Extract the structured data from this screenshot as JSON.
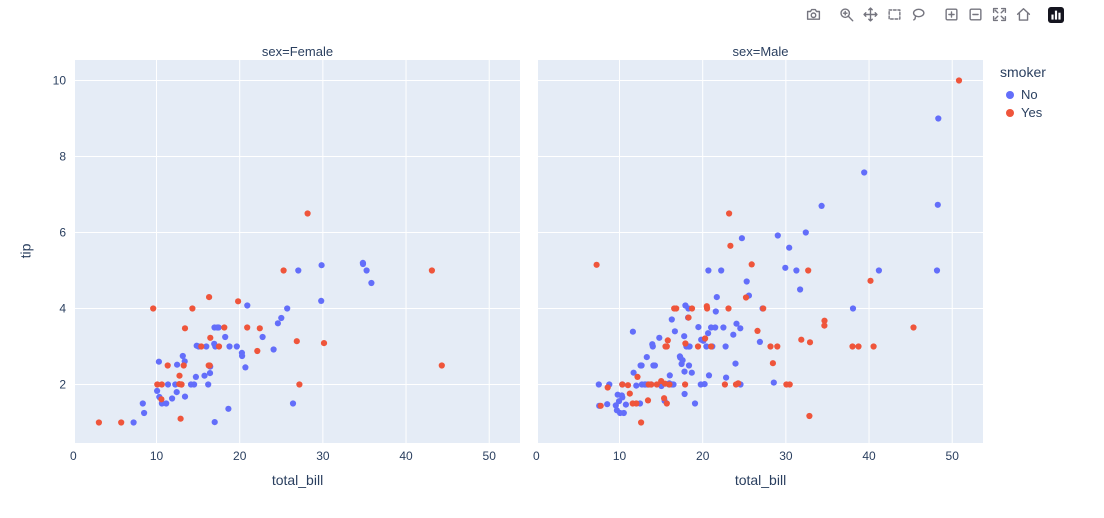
{
  "modebar": {
    "icons": [
      "camera",
      "zoom",
      "pan",
      "box-select",
      "lasso-select",
      "zoom-in",
      "zoom-out",
      "autoscale",
      "reset-axes",
      "plotly-logo"
    ]
  },
  "chart_data": {
    "type": "scatter",
    "facet_by": "sex",
    "color_by": "smoker",
    "xlabel": "total_bill",
    "ylabel": "tip",
    "x_range": [
      0.2,
      53.7
    ],
    "y_range": [
      0.46,
      10.54
    ],
    "x_ticks": [
      0,
      10,
      20,
      30,
      40,
      50
    ],
    "y_ticks": [
      2,
      4,
      6,
      8,
      10
    ],
    "plot_bgcolor": "#e5ecf6",
    "grid_color": "#ffffff",
    "colors": {
      "No": "#636efa",
      "Yes": "#ef553b"
    },
    "legend": {
      "title": "smoker",
      "entries": [
        "No",
        "Yes"
      ]
    },
    "facets": [
      {
        "title": "sex=Female",
        "series": [
          {
            "name": "No",
            "points": [
              [
                16.99,
                1.01
              ],
              [
                24.59,
                3.61
              ],
              [
                35.26,
                5
              ],
              [
                14.83,
                3.02
              ],
              [
                10.33,
                1.67
              ],
              [
                16.97,
                3.5
              ],
              [
                20.29,
                2.75
              ],
              [
                15.77,
                2.23
              ],
              [
                19.65,
                3
              ],
              [
                15.06,
                3
              ],
              [
                20.69,
                2.45
              ],
              [
                16.93,
                3.07
              ],
              [
                10.29,
                2.6
              ],
              [
                34.81,
                5.2
              ],
              [
                26.41,
                1.5
              ],
              [
                16.45,
                2.47
              ],
              [
                17.07,
                3
              ],
              [
                14.73,
                2.2
              ],
              [
                10.07,
                1.83
              ],
              [
                34.83,
                5.17
              ],
              [
                22.75,
                3.25
              ],
              [
                20.92,
                4.08
              ],
              [
                7.25,
                1
              ],
              [
                25.71,
                4
              ],
              [
                17.31,
                3.5
              ],
              [
                10.65,
                1.5
              ],
              [
                12.43,
                1.8
              ],
              [
                24.08,
                2.92
              ],
              [
                13.42,
                1.68
              ],
              [
                12.48,
                2.52
              ],
              [
                29.8,
                4.2
              ],
              [
                14.52,
                2
              ],
              [
                11.38,
                2
              ],
              [
                20.27,
                2.83
              ],
              [
                11.17,
                1.5
              ],
              [
                12.26,
                2
              ],
              [
                18.26,
                3.25
              ],
              [
                8.51,
                1.25
              ],
              [
                14.15,
                2
              ],
              [
                13.16,
                2.75
              ],
              [
                17.47,
                3.5
              ],
              [
                27.05,
                5
              ],
              [
                16.43,
                2.3
              ],
              [
                8.35,
                1.5
              ],
              [
                18.64,
                1.36
              ],
              [
                11.87,
                1.63
              ],
              [
                29.85,
                5.14
              ],
              [
                25,
                3.75
              ],
              [
                13.39,
                2.61
              ],
              [
                16.21,
                2
              ],
              [
                15.98,
                3
              ],
              [
                35.83,
                4.67
              ],
              [
                18.78,
                3
              ]
            ]
          },
          {
            "name": "Yes",
            "points": [
              [
                3.07,
                1
              ],
              [
                26.86,
                3.14
              ],
              [
                25.28,
                5
              ],
              [
                5.75,
                1
              ],
              [
                16.32,
                4.3
              ],
              [
                11.35,
                2.5
              ],
              [
                15.38,
                3
              ],
              [
                44.3,
                2.5
              ],
              [
                22.42,
                3.48
              ],
              [
                14.31,
                4
              ],
              [
                17.51,
                3
              ],
              [
                10.59,
                1.61
              ],
              [
                10.63,
                2
              ],
              [
                9.6,
                4
              ],
              [
                20.9,
                3.5
              ],
              [
                18.15,
                3.5
              ],
              [
                19.81,
                4.19
              ],
              [
                43.11,
                5
              ],
              [
                13,
                2
              ],
              [
                12.74,
                2.01
              ],
              [
                13,
                2
              ],
              [
                16.4,
                2.5
              ],
              [
                16.47,
                3.23
              ],
              [
                12.76,
                2.23
              ],
              [
                13.27,
                2.5
              ],
              [
                28.17,
                6.5
              ],
              [
                12.9,
                1.1
              ],
              [
                30.14,
                3.09
              ],
              [
                13.42,
                3.48
              ],
              [
                16.27,
                2.5
              ],
              [
                10.09,
                2
              ],
              [
                22.12,
                2.88
              ],
              [
                27.18,
                2
              ]
            ]
          }
        ]
      },
      {
        "title": "sex=Male",
        "series": [
          {
            "name": "No",
            "points": [
              [
                10.34,
                1.66
              ],
              [
                21.01,
                3.5
              ],
              [
                23.68,
                3.31
              ],
              [
                25.29,
                4.71
              ],
              [
                8.77,
                2
              ],
              [
                26.88,
                3.12
              ],
              [
                15.04,
                1.96
              ],
              [
                14.78,
                3.23
              ],
              [
                10.27,
                1.71
              ],
              [
                15.42,
                1.57
              ],
              [
                18.43,
                3
              ],
              [
                21.58,
                3.92
              ],
              [
                16.29,
                3.71
              ],
              [
                20.65,
                3.35
              ],
              [
                17.92,
                4.08
              ],
              [
                39.42,
                7.58
              ],
              [
                19.82,
                3.18
              ],
              [
                17.81,
                2.34
              ],
              [
                13.37,
                2
              ],
              [
                12.69,
                2
              ],
              [
                21.7,
                4.3
              ],
              [
                9.55,
                1.45
              ],
              [
                18.35,
                2.5
              ],
              [
                17.78,
                3.27
              ],
              [
                24.06,
                3.6
              ],
              [
                16.31,
                2
              ],
              [
                18.69,
                2.31
              ],
              [
                31.27,
                5
              ],
              [
                16.04,
                2.24
              ],
              [
                17.46,
                2.54
              ],
              [
                13.94,
                3.06
              ],
              [
                9.68,
                1.32
              ],
              [
                30.4,
                5.6
              ],
              [
                18.29,
                3
              ],
              [
                22.23,
                5
              ],
              [
                32.4,
                6
              ],
              [
                28.55,
                2.05
              ],
              [
                18.04,
                3
              ],
              [
                12.54,
                2.5
              ],
              [
                9.94,
                1.56
              ],
              [
                25.56,
                4.34
              ],
              [
                19.49,
                3.51
              ],
              [
                48.27,
                6.73
              ],
              [
                17.59,
                2.64
              ],
              [
                20.08,
                3.15
              ],
              [
                20.23,
                2.01
              ],
              [
                12.02,
                1.97
              ],
              [
                10.51,
                1.25
              ],
              [
                27.2,
                4
              ],
              [
                22.76,
                3
              ],
              [
                17.29,
                2.71
              ],
              [
                16.66,
                3.4
              ],
              [
                15.98,
                2.03
              ],
              [
                13.03,
                2
              ],
              [
                18.28,
                4
              ],
              [
                24.71,
                5.85
              ],
              [
                21.16,
                3
              ],
              [
                22.49,
                3.5
              ],
              [
                12.46,
                1.5
              ],
              [
                18.24,
                3.76
              ],
              [
                14,
                3
              ],
              [
                38.07,
                4
              ],
              [
                23.95,
                2.55
              ],
              [
                29.93,
                5.07
              ],
              [
                11.69,
                2.31
              ],
              [
                14.26,
                2.5
              ],
              [
                15.95,
                2
              ],
              [
                8.52,
                1.48
              ],
              [
                22.82,
                2.18
              ],
              [
                19.08,
                1.5
              ],
              [
                10.33,
                2
              ],
              [
                34.3,
                6.7
              ],
              [
                41.19,
                5
              ],
              [
                9.78,
                1.73
              ],
              [
                7.51,
                2
              ],
              [
                14.07,
                2.5
              ],
              [
                13.13,
                2
              ],
              [
                17.26,
                2.74
              ],
              [
                24.55,
                2
              ],
              [
                19.77,
                2
              ],
              [
                48.17,
                5
              ],
              [
                16.49,
                2
              ],
              [
                21.5,
                3.5
              ],
              [
                12.66,
                2.5
              ],
              [
                13.81,
                2
              ],
              [
                24.52,
                3.48
              ],
              [
                20.76,
                2.24
              ],
              [
                31.71,
                4.5
              ],
              [
                20.69,
                5
              ],
              [
                7.56,
                1.44
              ],
              [
                48.33,
                9
              ],
              [
                20.45,
                3
              ],
              [
                13.28,
                2.72
              ],
              [
                11.61,
                3.39
              ],
              [
                10.77,
                1.47
              ],
              [
                10.07,
                1.25
              ],
              [
                29.03,
                5.92
              ],
              [
                17.82,
                1.75
              ]
            ]
          },
          {
            "name": "Yes",
            "points": [
              [
                38.01,
                3
              ],
              [
                11.24,
                1.76
              ],
              [
                20.29,
                3.21
              ],
              [
                13.81,
                2
              ],
              [
                11.02,
                1.98
              ],
              [
                18.29,
                3.76
              ],
              [
                15.01,
                2.09
              ],
              [
                17.92,
                3.08
              ],
              [
                19.44,
                3
              ],
              [
                32.68,
                5
              ],
              [
                28.97,
                3
              ],
              [
                40.17,
                4.73
              ],
              [
                27.28,
                4
              ],
              [
                12.03,
                1.5
              ],
              [
                21.01,
                3
              ],
              [
                15.36,
                1.64
              ],
              [
                20.49,
                4.06
              ],
              [
                25.21,
                4.29
              ],
              [
                16,
                2
              ],
              [
                50.81,
                10
              ],
              [
                15.81,
                3.16
              ],
              [
                7.25,
                5.15
              ],
              [
                31.85,
                3.18
              ],
              [
                16.82,
                4
              ],
              [
                32.9,
                3.11
              ],
              [
                17.89,
                2
              ],
              [
                14.48,
                2
              ],
              [
                34.63,
                3.55
              ],
              [
                34.65,
                3.68
              ],
              [
                23.33,
                5.65
              ],
              [
                45.35,
                3.5
              ],
              [
                23.17,
                6.5
              ],
              [
                40.55,
                3
              ],
              [
                30.46,
                2
              ],
              [
                23.1,
                4
              ],
              [
                15.69,
                1.5
              ],
              [
                28.44,
                2.56
              ],
              [
                15.48,
                2.02
              ],
              [
                16.58,
                4
              ],
              [
                10.34,
                2
              ],
              [
                13.51,
                2
              ],
              [
                18.71,
                4
              ],
              [
                20.53,
                4
              ],
              [
                26.59,
                3.41
              ],
              [
                38.73,
                3
              ],
              [
                24.27,
                2.03
              ],
              [
                30.06,
                2
              ],
              [
                25.89,
                5.16
              ],
              [
                28.15,
                3
              ],
              [
                11.59,
                1.5
              ],
              [
                7.74,
                1.44
              ],
              [
                12.16,
                2.2
              ],
              [
                8.58,
                1.92
              ],
              [
                13.42,
                1.58
              ],
              [
                24.01,
                2
              ],
              [
                15.69,
                3
              ],
              [
                15.53,
                3
              ],
              [
                12.6,
                1
              ],
              [
                32.83,
                1.17
              ],
              [
                22.67,
                2
              ]
            ]
          }
        ]
      }
    ]
  }
}
